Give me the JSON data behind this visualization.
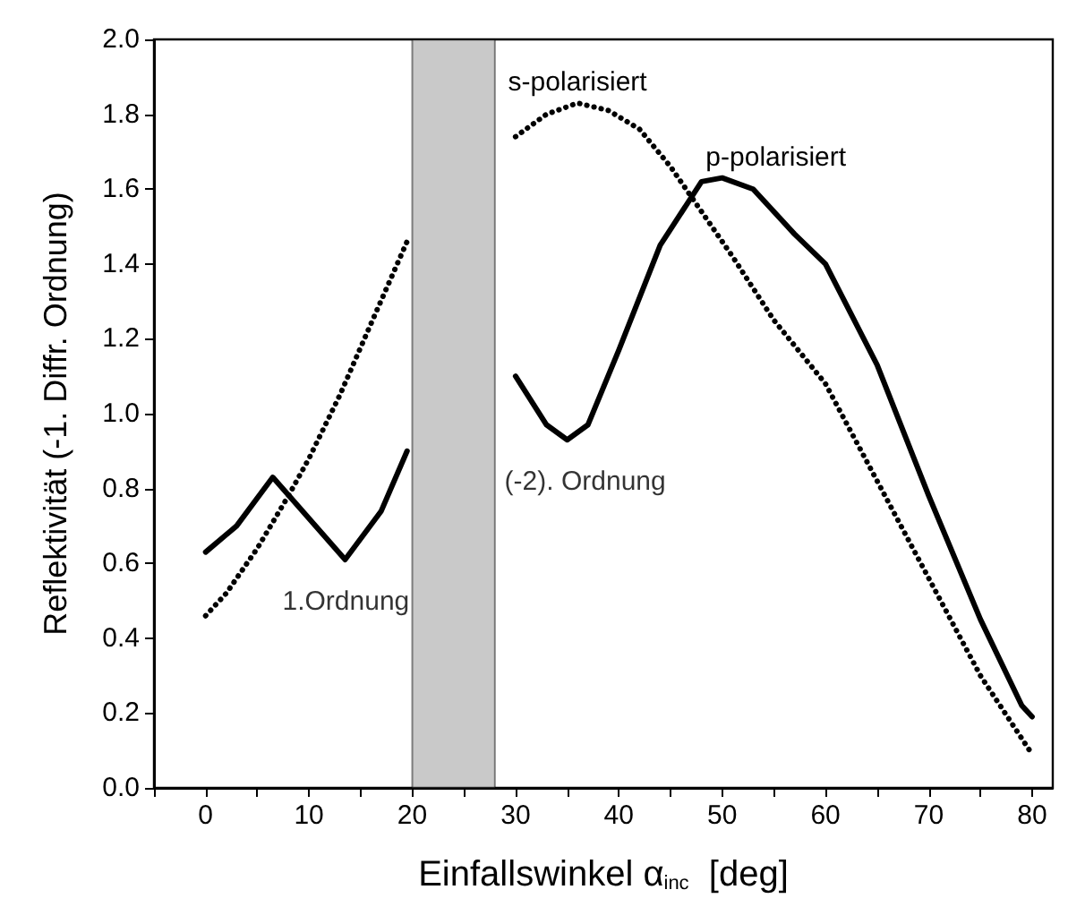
{
  "chart_data": {
    "type": "line",
    "xlabel": "Einfallswinkel α$_{inc}$  [deg]",
    "ylabel": "Reflektivität (-1. Diffr. Ordnung)",
    "xlim": [
      -5,
      82
    ],
    "xticks": [
      {
        "value": -5,
        "label": null
      },
      0,
      {
        "value": 5,
        "label": null
      },
      10,
      {
        "value": 15,
        "label": null
      },
      20,
      {
        "value": 25,
        "label": null
      },
      30,
      {
        "value": 35,
        "label": null
      },
      40,
      {
        "value": 45,
        "label": null
      },
      50,
      {
        "value": 55,
        "label": null
      },
      60,
      {
        "value": 65,
        "label": null
      },
      70,
      {
        "value": 75,
        "label": null
      },
      80
    ],
    "ylim": [
      0,
      2
    ],
    "yticks": [
      {
        "value": 0,
        "label": "0.0"
      },
      {
        "value": 0.2,
        "label": "0.2"
      },
      {
        "value": 0.4,
        "label": "0.4"
      },
      {
        "value": 0.6,
        "label": "0.6"
      },
      {
        "value": 0.8,
        "label": "0.8"
      },
      {
        "value": 1,
        "label": "1.0"
      },
      {
        "value": 1.2,
        "label": "1.2"
      },
      {
        "value": 1.4,
        "label": "1.4"
      },
      {
        "value": 1.6,
        "label": "1.6"
      },
      {
        "value": 1.8,
        "label": "1.8"
      },
      {
        "value": 2,
        "label": "2.0"
      }
    ],
    "grid": false,
    "legend": false,
    "marker": "none",
    "series": [
      {
        "name": "s-polarisiert",
        "color": "#000000",
        "line_style": "dotted",
        "x": [
          0,
          2,
          5,
          8,
          10,
          13,
          16,
          19.5,
          25,
          30,
          33,
          36,
          39,
          42,
          45,
          48,
          51,
          55,
          60,
          65,
          70,
          75,
          80
        ],
        "values": [
          0.46,
          0.52,
          0.64,
          0.78,
          0.88,
          1.05,
          1.24,
          1.46,
          null,
          1.74,
          1.8,
          1.83,
          1.81,
          1.76,
          1.66,
          1.54,
          1.42,
          1.25,
          1.08,
          0.82,
          0.56,
          0.3,
          0.09
        ]
      },
      {
        "name": "p-polarisiert",
        "color": "#000000",
        "line_style": "solid",
        "x": [
          0,
          3,
          6.5,
          10,
          13.5,
          17,
          19.5,
          25,
          30,
          33,
          35,
          37,
          40,
          44,
          48,
          50,
          53,
          57,
          60,
          65,
          70,
          75,
          79,
          80
        ],
        "values": [
          0.63,
          0.7,
          0.83,
          0.72,
          0.61,
          0.74,
          0.9,
          null,
          1.1,
          0.97,
          0.93,
          0.97,
          1.17,
          1.45,
          1.62,
          1.63,
          1.6,
          1.48,
          1.4,
          1.13,
          0.78,
          0.45,
          0.22,
          0.19
        ]
      }
    ],
    "bands": [
      {
        "axis": "x",
        "from": 20,
        "to": 28,
        "color": "#888888"
      }
    ],
    "annotations": [
      {
        "text": "1.Ordnung",
        "x": 13.5,
        "y": 0.61
      },
      {
        "text": "(-2). Ordnung",
        "x": 35,
        "y": 0.93
      }
    ]
  }
}
